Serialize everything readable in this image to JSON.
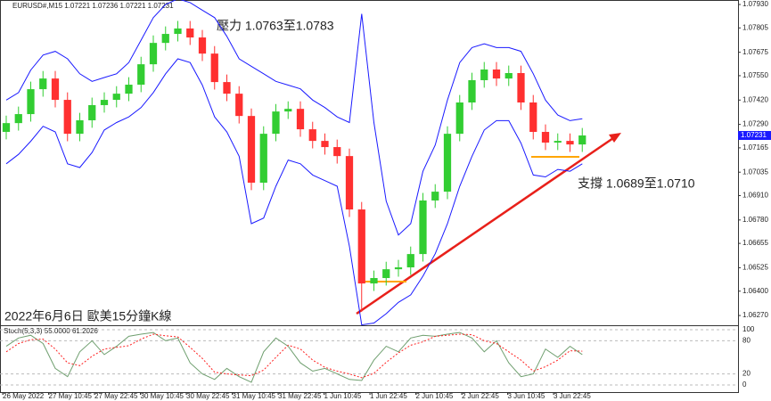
{
  "chart_data": {
    "type": "candlestick",
    "title": "EURUSD#,M15 1.07221 1.07236 1.07221 1.07231",
    "annotations": [
      "壓力 1.0763至1.0783",
      "支撐 1.0689至1.0710",
      "2022年6月6日 歐美15分鐘K線"
    ],
    "open": [
      1.0725,
      1.07297,
      1.07345,
      1.07478,
      1.07535,
      1.07421,
      1.0724,
      1.07312,
      1.07393,
      1.07421,
      1.07454,
      1.07502,
      1.07611,
      1.07725,
      1.07773,
      1.07802,
      1.07754,
      1.07668,
      1.07516,
      1.07454,
      1.07335,
      1.06979,
      1.0724,
      1.07359,
      1.07373,
      1.07264,
      1.07202,
      1.07169,
      1.07121,
      1.06836,
      1.06441,
      1.0647,
      1.06517,
      1.06527,
      1.06598,
      1.06884,
      1.06931,
      1.0724,
      1.07407,
      1.07526,
      1.07583,
      1.07535,
      1.07564,
      1.07407,
      1.0725,
      1.07193,
      1.07202,
      1.07183
    ],
    "high": [
      1.07337,
      1.07385,
      1.07518,
      1.07575,
      1.07575,
      1.07461,
      1.07352,
      1.07433,
      1.07461,
      1.07494,
      1.07542,
      1.07651,
      1.07765,
      1.07813,
      1.07842,
      1.07842,
      1.07794,
      1.07708,
      1.07556,
      1.07494,
      1.07375,
      1.0728,
      1.07399,
      1.07413,
      1.07413,
      1.07304,
      1.07242,
      1.07209,
      1.07161,
      1.06876,
      1.0651,
      1.06557,
      1.06567,
      1.06638,
      1.06924,
      1.06971,
      1.0728,
      1.07447,
      1.07566,
      1.07623,
      1.07623,
      1.07604,
      1.07604,
      1.07447,
      1.0729,
      1.07242,
      1.07242,
      1.07271
    ],
    "low": [
      1.0721,
      1.07257,
      1.07305,
      1.07438,
      1.07381,
      1.072,
      1.072,
      1.07272,
      1.07353,
      1.07381,
      1.07414,
      1.07462,
      1.07571,
      1.07685,
      1.07733,
      1.07714,
      1.07628,
      1.07476,
      1.07414,
      1.07295,
      1.06939,
      1.06939,
      1.072,
      1.07319,
      1.07224,
      1.07162,
      1.07129,
      1.07081,
      1.06796,
      1.0629,
      1.06401,
      1.0643,
      1.06477,
      1.06487,
      1.06558,
      1.06844,
      1.06891,
      1.072,
      1.07367,
      1.07486,
      1.07495,
      1.07495,
      1.07367,
      1.0721,
      1.07153,
      1.07153,
      1.07143,
      1.07143
    ],
    "close": [
      1.07297,
      1.07345,
      1.07478,
      1.07535,
      1.07421,
      1.0724,
      1.07312,
      1.07393,
      1.07421,
      1.07454,
      1.07502,
      1.07611,
      1.07725,
      1.07773,
      1.07802,
      1.07754,
      1.07668,
      1.07516,
      1.07454,
      1.07335,
      1.06979,
      1.0724,
      1.07359,
      1.07373,
      1.07264,
      1.07202,
      1.07169,
      1.07121,
      1.06836,
      1.06441,
      1.0647,
      1.06517,
      1.06527,
      1.06598,
      1.06884,
      1.06931,
      1.0724,
      1.07407,
      1.07526,
      1.07583,
      1.07535,
      1.07564,
      1.07407,
      1.0725,
      1.07193,
      1.07202,
      1.07183,
      1.07231
    ],
    "upper_band": [
      1.0742,
      1.0746,
      1.0758,
      1.0766,
      1.0768,
      1.0764,
      1.0756,
      1.0752,
      1.0754,
      1.0756,
      1.0762,
      1.0774,
      1.0786,
      1.0793,
      1.0796,
      1.0794,
      1.079,
      1.0786,
      1.0776,
      1.0764,
      1.076,
      1.0756,
      1.0752,
      1.075,
      1.0748,
      1.0742,
      1.0738,
      1.0733,
      1.073,
      1.0788,
      1.073,
      1.0688,
      1.067,
      1.0676,
      1.0704,
      1.0718,
      1.0742,
      1.0762,
      1.077,
      1.0772,
      1.077,
      1.077,
      1.0768,
      1.0756,
      1.0742,
      1.0734,
      1.0731,
      1.0732
    ],
    "lower_band": [
      1.0708,
      1.0713,
      1.072,
      1.0728,
      1.0725,
      1.0708,
      1.0706,
      1.0714,
      1.0726,
      1.073,
      1.0733,
      1.0738,
      1.0746,
      1.0756,
      1.0764,
      1.0762,
      1.075,
      1.0733,
      1.0725,
      1.0712,
      1.0676,
      1.0679,
      1.0696,
      1.071,
      1.0708,
      1.0702,
      1.0699,
      1.0696,
      1.0664,
      1.0622,
      1.0623,
      1.0628,
      1.0634,
      1.0638,
      1.0648,
      1.066,
      1.0676,
      1.0696,
      1.0712,
      1.0726,
      1.0731,
      1.0731,
      1.0719,
      1.0702,
      1.0701,
      1.0705,
      1.0704,
      1.0708
    ],
    "bull_color": "#32cd32",
    "bear_color": "#ff3030",
    "band_color": "#1a1aff",
    "ylim": [
      1.06218,
      1.07954
    ],
    "yticks": [
      {
        "value": 1.0793,
        "label": "1.07930"
      },
      1.07805,
      1.07675,
      {
        "value": 1.0755,
        "label": "1.07550"
      },
      {
        "value": 1.0742,
        "label": "1.07420"
      },
      {
        "value": 1.0729,
        "label": "1.07290"
      },
      1.07165,
      1.07035,
      {
        "value": 1.0691,
        "label": "1.06910"
      },
      {
        "value": 1.0678,
        "label": "1.06780"
      },
      1.06655,
      1.06525,
      {
        "value": 1.064,
        "label": "1.06400"
      },
      {
        "value": 1.0627,
        "label": "1.06270"
      }
    ],
    "last_price": 1.07231,
    "time_labels": [
      "26 May 2022",
      "27 May 10:45",
      "27 May 22:45",
      "30 May 10:45",
      "30 May 22:45",
      "31 May 10:45",
      "31 May 22:45",
      "1 Jun 10:45",
      "1 Jun 22:45",
      "2 Jun 10:45",
      "2 Jun 22:45",
      "3 Jun 10:45",
      "3 Jun 22:45"
    ],
    "stoch": {
      "title": "Stoch(5,3,3) 55.0000 61.2026",
      "ylim": [
        0,
        100
      ],
      "yticks": [
        0,
        20,
        80,
        100
      ],
      "k": [
        70,
        85,
        90,
        75,
        30,
        15,
        60,
        80,
        55,
        70,
        88,
        92,
        95,
        80,
        85,
        40,
        20,
        10,
        30,
        15,
        5,
        60,
        85,
        70,
        40,
        25,
        30,
        20,
        10,
        8,
        45,
        70,
        60,
        85,
        90,
        88,
        92,
        95,
        85,
        60,
        80,
        40,
        15,
        20,
        65,
        50,
        70,
        55
      ],
      "d": [
        60,
        75,
        82,
        83,
        65,
        40,
        35,
        52,
        65,
        68,
        71,
        83,
        92,
        89,
        87,
        68,
        48,
        23,
        20,
        18,
        17,
        27,
        50,
        72,
        65,
        45,
        32,
        25,
        20,
        13,
        21,
        41,
        58,
        72,
        78,
        88,
        90,
        92,
        91,
        80,
        75,
        60,
        45,
        25,
        33,
        45,
        62,
        61.2026
      ],
      "k_color": "#6f9f6f",
      "d_color": "#ff2020"
    }
  }
}
